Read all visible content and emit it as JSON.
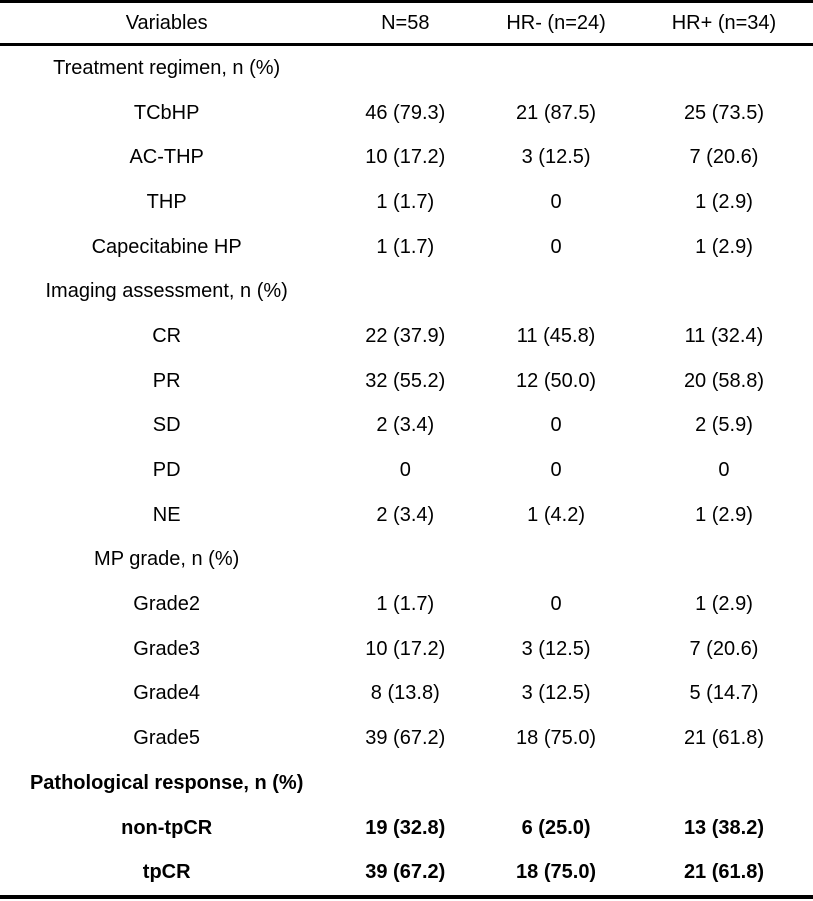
{
  "page": {
    "background_color": "#ffffff",
    "text_color": "#000000",
    "rule_color": "#000000"
  },
  "table": {
    "columns": [
      "Variables",
      "N=58",
      "HR- (n=24)",
      "HR+ (n=34)"
    ],
    "rows": [
      {
        "type": "section",
        "bold": false,
        "label": "Treatment regimen, n (%)",
        "values": [
          "",
          "",
          ""
        ]
      },
      {
        "type": "item",
        "bold": false,
        "label": "TCbHP",
        "values": [
          "46 (79.3)",
          "21 (87.5)",
          "25 (73.5)"
        ]
      },
      {
        "type": "item",
        "bold": false,
        "label": "AC-THP",
        "values": [
          "10 (17.2)",
          "3 (12.5)",
          "7 (20.6)"
        ]
      },
      {
        "type": "item",
        "bold": false,
        "label": "THP",
        "values": [
          "1 (1.7)",
          "0",
          "1 (2.9)"
        ]
      },
      {
        "type": "item",
        "bold": false,
        "label": "Capecitabine HP",
        "values": [
          "1 (1.7)",
          "0",
          "1 (2.9)"
        ]
      },
      {
        "type": "section",
        "bold": false,
        "label": "Imaging assessment, n (%)",
        "values": [
          "",
          "",
          ""
        ]
      },
      {
        "type": "item",
        "bold": false,
        "label": "CR",
        "values": [
          "22 (37.9)",
          "11 (45.8)",
          "11 (32.4)"
        ]
      },
      {
        "type": "item",
        "bold": false,
        "label": "PR",
        "values": [
          "32 (55.2)",
          "12 (50.0)",
          "20 (58.8)"
        ]
      },
      {
        "type": "item",
        "bold": false,
        "label": "SD",
        "values": [
          "2 (3.4)",
          "0",
          "2 (5.9)"
        ]
      },
      {
        "type": "item",
        "bold": false,
        "label": "PD",
        "values": [
          "0",
          "0",
          "0"
        ]
      },
      {
        "type": "item",
        "bold": false,
        "label": "NE",
        "values": [
          "2 (3.4)",
          "1 (4.2)",
          "1 (2.9)"
        ]
      },
      {
        "type": "section",
        "bold": false,
        "label": "MP grade, n (%)",
        "values": [
          "",
          "",
          ""
        ]
      },
      {
        "type": "item",
        "bold": false,
        "label": "Grade2",
        "values": [
          "1 (1.7)",
          "0",
          "1 (2.9)"
        ]
      },
      {
        "type": "item",
        "bold": false,
        "label": "Grade3",
        "values": [
          "10 (17.2)",
          "3 (12.5)",
          "7 (20.6)"
        ]
      },
      {
        "type": "item",
        "bold": false,
        "label": "Grade4",
        "values": [
          "8 (13.8)",
          "3 (12.5)",
          "5 (14.7)"
        ]
      },
      {
        "type": "item",
        "bold": false,
        "label": "Grade5",
        "values": [
          "39 (67.2)",
          "18 (75.0)",
          "21 (61.8)"
        ]
      },
      {
        "type": "section",
        "bold": true,
        "label": "Pathological response, n (%)",
        "values": [
          "",
          "",
          ""
        ]
      },
      {
        "type": "item",
        "bold": true,
        "label": "non-tpCR",
        "values": [
          "19 (32.8)",
          "6 (25.0)",
          "13 (38.2)"
        ]
      },
      {
        "type": "item",
        "bold": true,
        "label": "tpCR",
        "values": [
          "39 (67.2)",
          "18 (75.0)",
          "21 (61.8)"
        ]
      }
    ]
  }
}
